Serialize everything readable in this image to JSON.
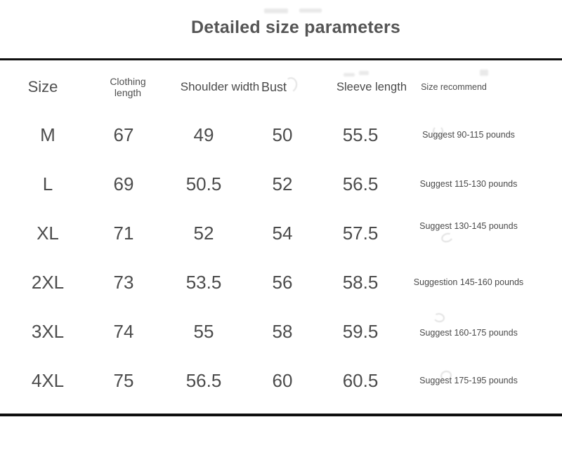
{
  "title": "Detailed size parameters",
  "colors": {
    "background": "#ffffff",
    "text": "#4c4c4c",
    "title_text": "#555555",
    "rule": "#0f0f0f"
  },
  "chart_data": {
    "type": "table",
    "title": "Detailed size parameters",
    "columns": [
      "Size",
      "Clothing length",
      "Shoulder width",
      "Bust",
      "Sleeve length",
      "Size recommend"
    ],
    "rows": [
      [
        "M",
        "67",
        "49",
        "50",
        "55.5",
        "Suggest 90-115 pounds"
      ],
      [
        "L",
        "69",
        "50.5",
        "52",
        "56.5",
        "Suggest 115-130 pounds"
      ],
      [
        "XL",
        "71",
        "52",
        "54",
        "57.5",
        "Suggest 130-145 pounds"
      ],
      [
        "2XL",
        "73",
        "53.5",
        "56",
        "58.5",
        "Suggestion 145-160 pounds"
      ],
      [
        "3XL",
        "74",
        "55",
        "58",
        "59.5",
        "Suggest 160-175 pounds"
      ],
      [
        "4XL",
        "75",
        "56.5",
        "60",
        "60.5",
        "Suggest 175-195 pounds"
      ]
    ]
  }
}
